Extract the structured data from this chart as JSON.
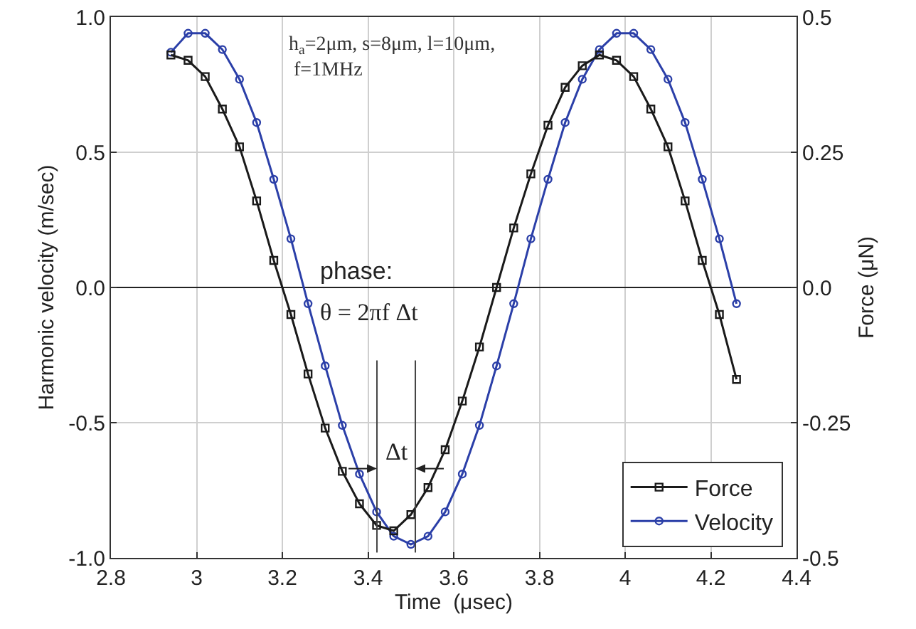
{
  "chart_data": {
    "type": "line",
    "xlabel": "Time  (μsec)",
    "ylabel": "Harmonic velocity (m/sec)",
    "y2label": "Force (μN)",
    "xlim": [
      2.8,
      4.4
    ],
    "xticks": [
      2.8,
      3,
      3.2,
      3.4,
      3.6,
      3.8,
      4,
      4.2,
      4.4
    ],
    "ylim": [
      -1,
      1
    ],
    "yticks": [
      {
        "value": -1,
        "label": "-1.0"
      },
      {
        "value": -0.5,
        "label": "-0.5"
      },
      {
        "value": 0,
        "label": "0.0"
      },
      {
        "value": 0.5,
        "label": "0.5"
      },
      {
        "value": 1,
        "label": "1.0"
      }
    ],
    "y2lim": [
      -0.5,
      0.5
    ],
    "y2ticks": [
      -0.5,
      -0.25,
      {
        "value": 0,
        "label": "0.0"
      },
      0.25,
      0.5
    ],
    "x": [
      2.94,
      2.98,
      3.02,
      3.06,
      3.1,
      3.14,
      3.18,
      3.22,
      3.26,
      3.3,
      3.34,
      3.38,
      3.42,
      3.46,
      3.5,
      3.54,
      3.58,
      3.62,
      3.66,
      3.7,
      3.74,
      3.78,
      3.82,
      3.86,
      3.9,
      3.94,
      3.98,
      4.02,
      4.06,
      4.1,
      4.14,
      4.18,
      4.22,
      4.26
    ],
    "series": [
      {
        "name": "Force",
        "color": "#1a1a1a",
        "axis": "y2",
        "marker": "square",
        "values": [
          0.43,
          0.42,
          0.39,
          0.33,
          0.26,
          0.16,
          0.05,
          -0.05,
          -0.16,
          -0.26,
          -0.34,
          -0.4,
          -0.44,
          -0.45,
          -0.42,
          -0.37,
          -0.3,
          -0.21,
          -0.11,
          0.0,
          0.11,
          0.21,
          0.3,
          0.37,
          0.41,
          0.43,
          0.42,
          0.39,
          0.33,
          0.26,
          0.16,
          0.05,
          -0.05,
          -0.17
        ]
      },
      {
        "name": "Velocity",
        "color": "#2b3fa8",
        "marker": "circle",
        "values": [
          0.87,
          0.94,
          0.94,
          0.88,
          0.77,
          0.61,
          0.4,
          0.18,
          -0.06,
          -0.29,
          -0.51,
          -0.69,
          -0.83,
          -0.92,
          -0.95,
          -0.92,
          -0.83,
          -0.69,
          -0.51,
          -0.29,
          -0.06,
          0.18,
          0.4,
          0.61,
          0.77,
          0.88,
          0.94,
          0.94,
          0.88,
          0.77,
          0.61,
          0.4,
          0.18,
          -0.06
        ]
      }
    ],
    "annotations": [
      "h$_{a}$=2μm, s=8μm, l=10μm, f=1MHz",
      "phase:",
      "θ = 2πf Δt",
      "Δt"
    ],
    "grid": true,
    "legend": "bottom right",
    "line_style": "solid"
  }
}
